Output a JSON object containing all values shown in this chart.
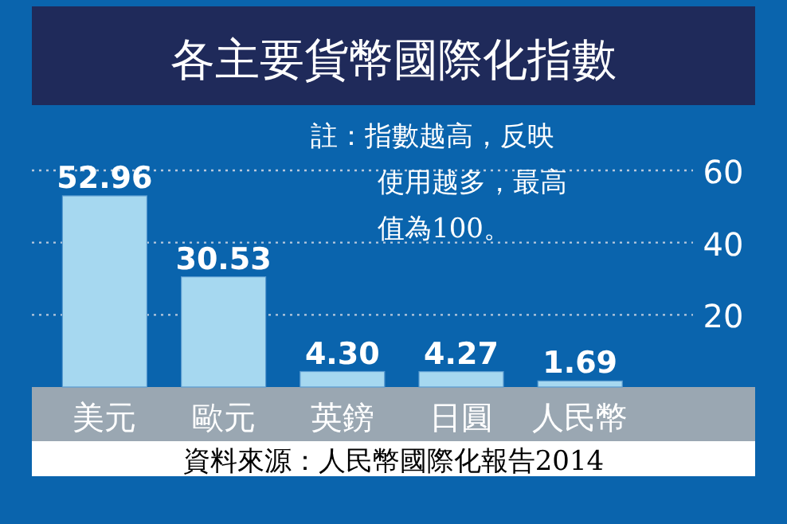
{
  "chart_data": {
    "type": "bar",
    "title": "各主要貨幣國際化指數",
    "categories": [
      "美元",
      "歐元",
      "英鎊",
      "日圓",
      "人民幣"
    ],
    "values": [
      52.96,
      30.53,
      4.3,
      4.27,
      1.69
    ],
    "value_labels": [
      "52.96",
      "30.53",
      "4.30",
      "4.27",
      "1.69"
    ],
    "color": "#a6d8f0",
    "ylim": [
      0,
      60
    ],
    "yticks": [
      20,
      40,
      60
    ],
    "grid": "y",
    "annotations": [
      "註：指數越高，反映使用越多，最高值為100。",
      "資料來源：人民幣國際化報告2014"
    ]
  }
}
